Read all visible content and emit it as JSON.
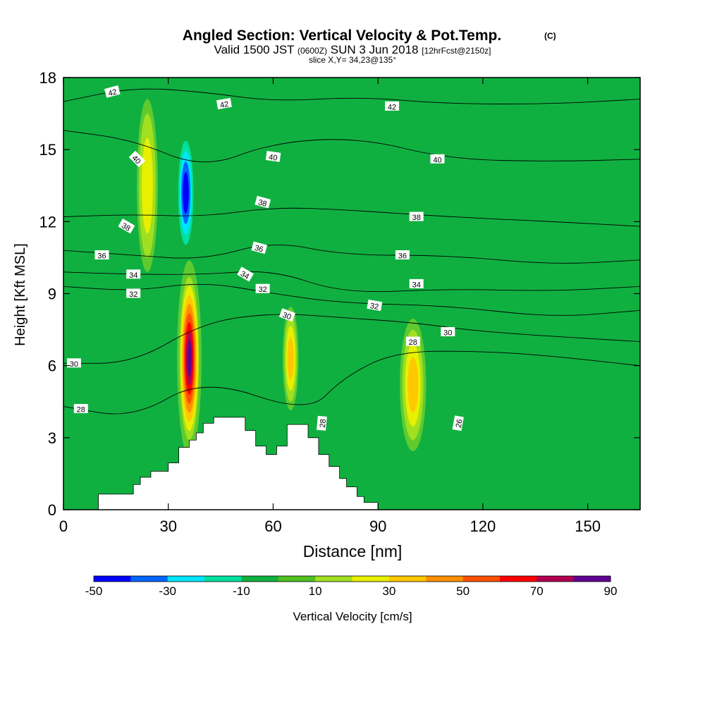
{
  "chart_data": {
    "type": "contour",
    "title_main": "Angled Section: Vertical Velocity & Pot.Temp.",
    "title_unit": "(C)",
    "subtitle_valid": "Valid 1500 JST",
    "subtitle_utc": "(0600Z)",
    "subtitle_date": "SUN 3 Jun 2018",
    "subtitle_run": "[12hrFcst@2150z]",
    "subtitle_slice": "slice X,Y= 34,23@135°",
    "xlabel": "Distance [nm]",
    "ylabel": "Height [Kft MSL]",
    "xlim": [
      0,
      165
    ],
    "ylim": [
      0,
      18
    ],
    "xticks": [
      "0",
      "30",
      "60",
      "90",
      "120",
      "150"
    ],
    "yticks": [
      "0",
      "3",
      "6",
      "9",
      "12",
      "15",
      "18"
    ],
    "xtick_values": [
      0,
      30,
      60,
      90,
      120,
      150
    ],
    "ytick_values": [
      0,
      3,
      6,
      9,
      12,
      15,
      18
    ],
    "colorbar": {
      "label": "Vertical Velocity [cm/s]",
      "tick_labels": [
        "-50",
        "-30",
        "-10",
        "10",
        "30",
        "50",
        "70",
        "90"
      ],
      "tick_values": [
        -50,
        -30,
        -10,
        10,
        30,
        50,
        70,
        90
      ],
      "range": [
        -50,
        90
      ],
      "colors": [
        "#0000ff",
        "#0066ff",
        "#00e5ff",
        "#00e0a0",
        "#10b040",
        "#50c020",
        "#a0e020",
        "#e8f000",
        "#ffc800",
        "#ff9000",
        "#ff5000",
        "#ff0000",
        "#b00050",
        "#600090"
      ]
    },
    "background_color": "#10b040",
    "velocity_features": [
      {
        "x": 36,
        "y": 6.3,
        "rx": 2.8,
        "ry": 3.4,
        "value": 80
      },
      {
        "x": 35,
        "y": 13.2,
        "rx": 2.6,
        "ry": 2.6,
        "value": -45
      },
      {
        "x": 65,
        "y": 6.3,
        "rx": 1.8,
        "ry": 1.8,
        "value": 30
      },
      {
        "x": 100,
        "y": 5.2,
        "rx": 3.0,
        "ry": 2.3,
        "value": 30
      },
      {
        "x": 91,
        "y": 4.8,
        "rx": 2.4,
        "ry": 2.6,
        "value": -10
      },
      {
        "x": 126,
        "y": 3.8,
        "rx": 7.0,
        "ry": 2.0,
        "value": -5
      },
      {
        "x": 24,
        "y": 13.5,
        "rx": 2.4,
        "ry": 3.0,
        "value": 20
      }
    ],
    "terrain": [
      [
        10,
        0.65
      ],
      [
        20,
        1.05
      ],
      [
        22,
        1.35
      ],
      [
        25,
        1.6
      ],
      [
        30,
        1.95
      ],
      [
        33,
        2.6
      ],
      [
        36,
        2.9
      ],
      [
        38,
        3.2
      ],
      [
        40,
        3.6
      ],
      [
        43,
        3.85
      ],
      [
        52,
        3.3
      ],
      [
        55,
        2.65
      ],
      [
        58,
        2.3
      ],
      [
        61,
        2.65
      ],
      [
        64,
        3.55
      ],
      [
        70,
        3.0
      ],
      [
        73,
        2.3
      ],
      [
        76,
        1.8
      ],
      [
        79,
        1.3
      ],
      [
        81,
        0.95
      ],
      [
        84,
        0.55
      ],
      [
        86,
        0.3
      ],
      [
        90,
        0
      ]
    ],
    "isotherms": [
      {
        "level": 42,
        "points": [
          [
            0,
            17.0
          ],
          [
            20,
            17.6
          ],
          [
            40,
            17.4
          ],
          [
            60,
            17.0
          ],
          [
            85,
            17.2
          ],
          [
            110,
            16.9
          ],
          [
            140,
            16.9
          ],
          [
            165,
            17.1
          ]
        ]
      },
      {
        "level": 40,
        "points": [
          [
            0,
            15.8
          ],
          [
            20,
            15.4
          ],
          [
            40,
            14.2
          ],
          [
            60,
            15.3
          ],
          [
            85,
            15.5
          ],
          [
            110,
            14.6
          ],
          [
            140,
            14.5
          ],
          [
            165,
            14.6
          ]
        ]
      },
      {
        "level": 38,
        "points": [
          [
            0,
            12.2
          ],
          [
            20,
            12.3
          ],
          [
            40,
            12.2
          ],
          [
            60,
            12.6
          ],
          [
            80,
            12.5
          ],
          [
            110,
            12.2
          ],
          [
            140,
            12.0
          ],
          [
            165,
            11.8
          ]
        ]
      },
      {
        "level": 36,
        "points": [
          [
            0,
            10.8
          ],
          [
            20,
            10.6
          ],
          [
            40,
            10.4
          ],
          [
            60,
            11.2
          ],
          [
            80,
            10.6
          ],
          [
            110,
            10.6
          ],
          [
            140,
            10.2
          ],
          [
            165,
            10.4
          ]
        ]
      },
      {
        "level": 34,
        "points": [
          [
            0,
            9.9
          ],
          [
            20,
            9.8
          ],
          [
            40,
            9.8
          ],
          [
            60,
            10.0
          ],
          [
            80,
            9.0
          ],
          [
            110,
            9.2
          ],
          [
            140,
            9.1
          ],
          [
            165,
            9.3
          ]
        ]
      },
      {
        "level": 32,
        "points": [
          [
            0,
            9.3
          ],
          [
            20,
            9.1
          ],
          [
            40,
            9.5
          ],
          [
            60,
            9.0
          ],
          [
            80,
            8.6
          ],
          [
            110,
            8.5
          ],
          [
            140,
            8.0
          ],
          [
            165,
            8.3
          ]
        ]
      },
      {
        "level": 30,
        "points": [
          [
            0,
            6.1
          ],
          [
            20,
            6.1
          ],
          [
            40,
            7.8
          ],
          [
            60,
            8.2
          ],
          [
            80,
            8.0
          ],
          [
            100,
            7.8
          ],
          [
            120,
            7.4
          ],
          [
            165,
            7.0
          ]
        ]
      },
      {
        "level": 28,
        "points": [
          [
            0,
            4.3
          ],
          [
            20,
            3.8
          ],
          [
            40,
            5.5
          ],
          [
            70,
            4.0
          ],
          [
            80,
            5.5
          ],
          [
            95,
            6.6
          ],
          [
            120,
            6.6
          ],
          [
            140,
            6.4
          ],
          [
            165,
            6.0
          ]
        ]
      }
    ],
    "isotherm_labels": [
      {
        "text": "42",
        "x": 14,
        "y": 17.4,
        "angle": -15
      },
      {
        "text": "42",
        "x": 46,
        "y": 16.9,
        "angle": -10
      },
      {
        "text": "42",
        "x": 94,
        "y": 16.8,
        "angle": 0
      },
      {
        "text": "40",
        "x": 21,
        "y": 14.6,
        "angle": 45
      },
      {
        "text": "40",
        "x": 60,
        "y": 14.7,
        "angle": 8
      },
      {
        "text": "40",
        "x": 107,
        "y": 14.6,
        "angle": 0
      },
      {
        "text": "38",
        "x": 18,
        "y": 11.8,
        "angle": 30
      },
      {
        "text": "38",
        "x": 57,
        "y": 12.8,
        "angle": 15
      },
      {
        "text": "38",
        "x": 101,
        "y": 12.2,
        "angle": 0
      },
      {
        "text": "36",
        "x": 11,
        "y": 10.6,
        "angle": 0
      },
      {
        "text": "36",
        "x": 56,
        "y": 10.9,
        "angle": 15
      },
      {
        "text": "36",
        "x": 97,
        "y": 10.6,
        "angle": 0
      },
      {
        "text": "34",
        "x": 20,
        "y": 9.8,
        "angle": 0
      },
      {
        "text": "34",
        "x": 52,
        "y": 9.8,
        "angle": 30
      },
      {
        "text": "34",
        "x": 101,
        "y": 9.4,
        "angle": 0
      },
      {
        "text": "32",
        "x": 20,
        "y": 9.0,
        "angle": 0
      },
      {
        "text": "32",
        "x": 57,
        "y": 9.2,
        "angle": 0
      },
      {
        "text": "32",
        "x": 89,
        "y": 8.5,
        "angle": 10
      },
      {
        "text": "30",
        "x": 3,
        "y": 6.1,
        "angle": 0
      },
      {
        "text": "30",
        "x": 64,
        "y": 8.1,
        "angle": 20
      },
      {
        "text": "30",
        "x": 110,
        "y": 7.4,
        "angle": 0
      },
      {
        "text": "28",
        "x": 5,
        "y": 4.2,
        "angle": 0
      },
      {
        "text": "28",
        "x": 74,
        "y": 3.6,
        "angle": -85
      },
      {
        "text": "28",
        "x": 100,
        "y": 7.0,
        "angle": 0
      },
      {
        "text": "26",
        "x": 113,
        "y": 3.6,
        "angle": -80
      }
    ]
  }
}
